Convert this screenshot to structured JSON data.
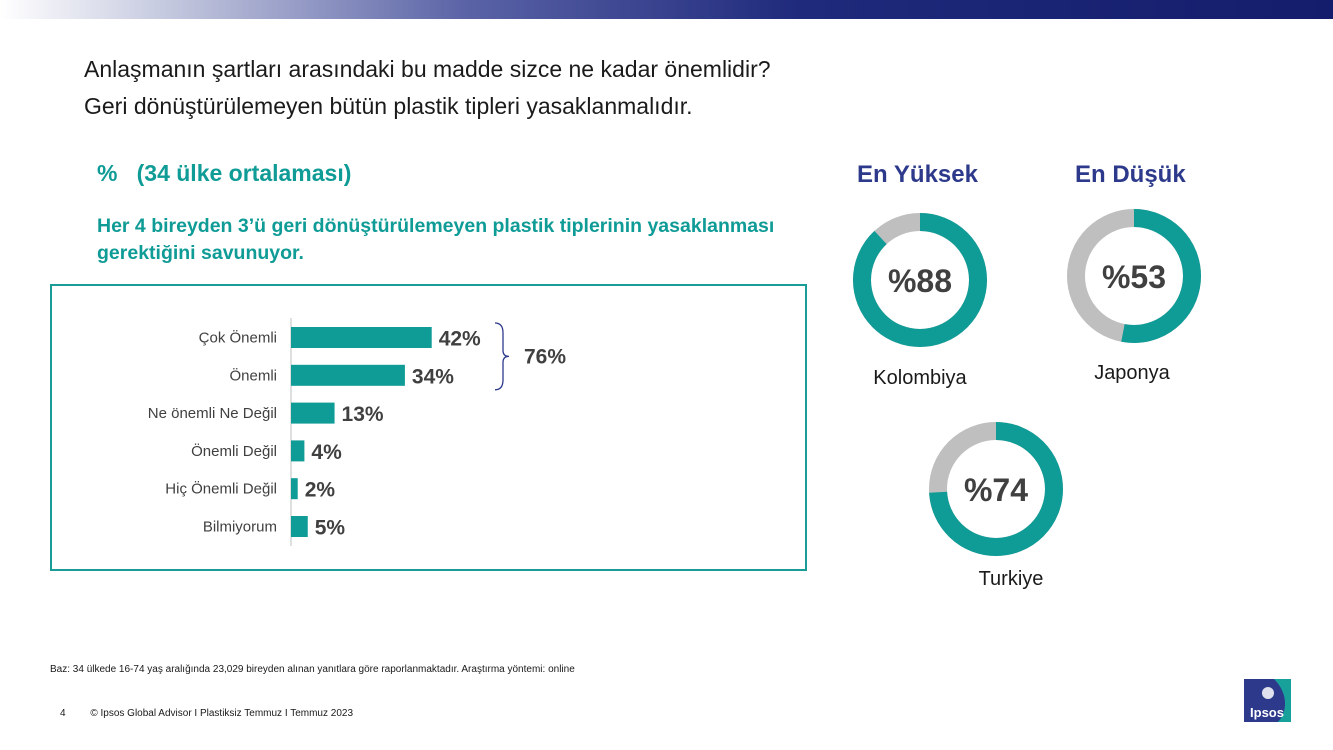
{
  "header": {
    "question": "Anlaşmanın şartları arasındaki bu madde sizce ne kadar önemlidir?",
    "statement": "Geri dönüştürülemeyen bütün plastik tipleri yasaklanmalıdır.",
    "unit_title": "%   (34 ülke ortalaması)",
    "highlight": "Her 4 bireyden 3’ü geri dönüştürülemeyen plastik tiplerinin yasaklanması gerektiğini savunuyor."
  },
  "chart_data": [
    {
      "type": "bar",
      "orientation": "horizontal",
      "categories": [
        "Çok Önemli",
        "Önemli",
        "Ne önemli Ne Değil",
        "Önemli Değil",
        "Hiç Önemli Değil",
        "Bilmiyorum"
      ],
      "values": [
        42,
        34,
        13,
        4,
        2,
        5
      ],
      "value_labels": [
        "42%",
        "34%",
        "13%",
        "4%",
        "2%",
        "5%"
      ],
      "bracket": {
        "covers": [
          "Çok Önemli",
          "Önemli"
        ],
        "label": "76%"
      },
      "bar_color": "#0f9b96"
    },
    {
      "type": "pie",
      "style": "donut",
      "items": [
        {
          "group": "En Yüksek",
          "country": "Kolombiya",
          "value": 88,
          "label": "%88"
        },
        {
          "group": "En Düşük",
          "country": "Japonya",
          "value": 53,
          "label": "%53"
        },
        {
          "group": "",
          "country": "Turkiye",
          "value": 74,
          "label": "%74"
        }
      ],
      "fill_color": "#0f9b96",
      "rest_color": "#bfbfbf"
    }
  ],
  "side": {
    "highest_title": "En Yüksek",
    "lowest_title": "En Düşük"
  },
  "footnote": "Baz: 34 ülkede 16-74 yaş aralığında 23,029 bireyden alınan yanıtlara göre raporlanmaktadır. Araştırma yöntemi: online",
  "footer": {
    "page_number": "4",
    "copyright": "© Ipsos Global Advisor I Plastiksiz Temmuz I Temmuz 2023"
  },
  "logo_text": "Ipsos",
  "colors": {
    "accent": "#0f9b96",
    "heading": "#2d3a8c",
    "banner": "#1f2a7c"
  }
}
